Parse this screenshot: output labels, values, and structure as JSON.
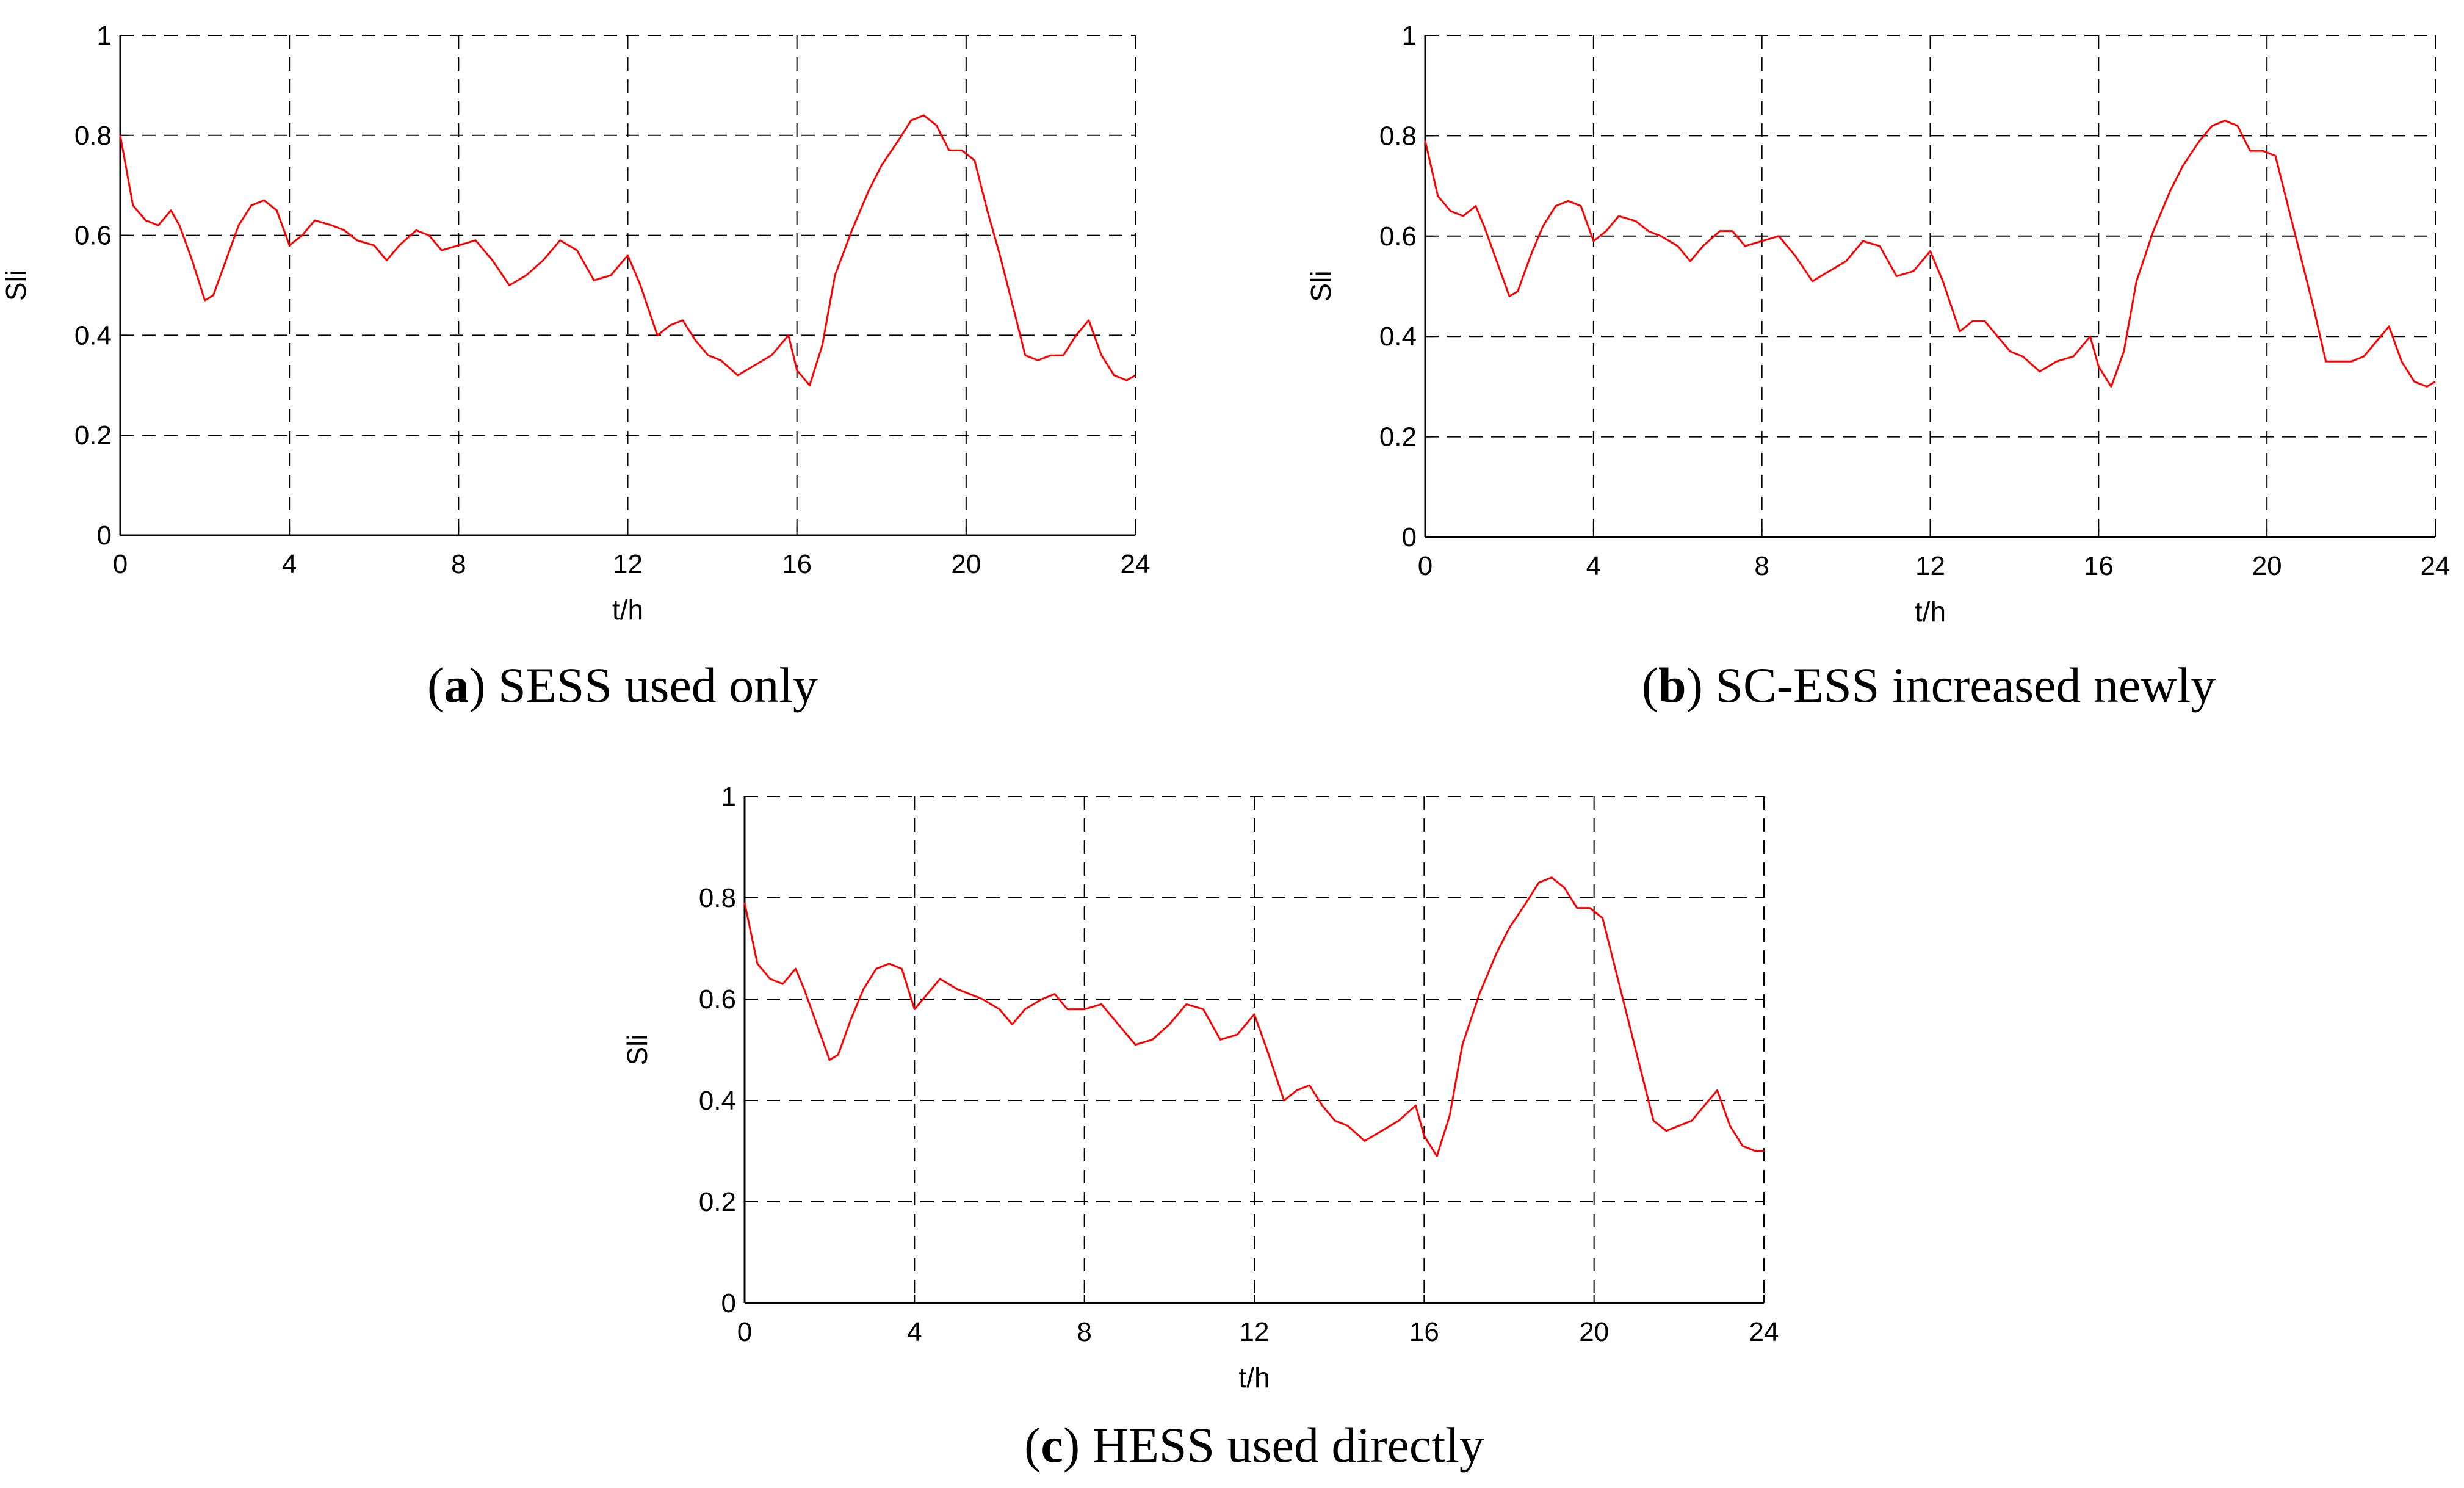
{
  "chart_data": [
    {
      "type": "line",
      "caption": {
        "open": "(",
        "letter": "a",
        "close": ")",
        "text": " SESS used only"
      },
      "xlabel": "t/h",
      "ylabel": "Sli",
      "xlim": [
        0,
        24
      ],
      "ylim": [
        0,
        1
      ],
      "xticks": [
        "0",
        "4",
        "8",
        "12",
        "16",
        "20",
        "24"
      ],
      "yticks": [
        "0",
        "0.2",
        "0.4",
        "0.6",
        "0.8",
        "1"
      ],
      "grid": true,
      "line_color": "#ff0000",
      "x": [
        0,
        0.3,
        0.6,
        0.9,
        1.2,
        1.4,
        1.7,
        2.0,
        2.2,
        2.5,
        2.8,
        3.1,
        3.4,
        3.7,
        4.0,
        4.3,
        4.6,
        5.0,
        5.3,
        5.6,
        6.0,
        6.3,
        6.6,
        7.0,
        7.3,
        7.6,
        8.0,
        8.4,
        8.8,
        9.2,
        9.6,
        10.0,
        10.4,
        10.8,
        11.2,
        11.6,
        12.0,
        12.3,
        12.7,
        13.0,
        13.3,
        13.6,
        13.9,
        14.2,
        14.6,
        15.0,
        15.4,
        15.8,
        16.0,
        16.3,
        16.6,
        16.9,
        17.3,
        17.7,
        18.0,
        18.4,
        18.7,
        19.0,
        19.3,
        19.6,
        19.9,
        20.2,
        20.5,
        20.8,
        21.1,
        21.4,
        21.7,
        22.0,
        22.3,
        22.6,
        22.9,
        23.2,
        23.5,
        23.8,
        24.0
      ],
      "y": [
        0.8,
        0.66,
        0.63,
        0.62,
        0.65,
        0.62,
        0.55,
        0.47,
        0.48,
        0.55,
        0.62,
        0.66,
        0.67,
        0.65,
        0.58,
        0.6,
        0.63,
        0.62,
        0.61,
        0.59,
        0.58,
        0.55,
        0.58,
        0.61,
        0.6,
        0.57,
        0.58,
        0.59,
        0.55,
        0.5,
        0.52,
        0.55,
        0.59,
        0.57,
        0.51,
        0.52,
        0.56,
        0.5,
        0.4,
        0.42,
        0.43,
        0.39,
        0.36,
        0.35,
        0.32,
        0.34,
        0.36,
        0.4,
        0.33,
        0.3,
        0.38,
        0.52,
        0.61,
        0.69,
        0.74,
        0.79,
        0.83,
        0.84,
        0.82,
        0.77,
        0.77,
        0.75,
        0.65,
        0.56,
        0.46,
        0.36,
        0.35,
        0.36,
        0.36,
        0.4,
        0.43,
        0.36,
        0.32,
        0.31,
        0.32
      ]
    },
    {
      "type": "line",
      "caption": {
        "open": "(",
        "letter": "b",
        "close": ")",
        "text": " SC-ESS increased newly"
      },
      "xlabel": "t/h",
      "ylabel": "Sli",
      "xlim": [
        0,
        24
      ],
      "ylim": [
        0,
        1
      ],
      "xticks": [
        "0",
        "4",
        "8",
        "12",
        "16",
        "20",
        "24"
      ],
      "yticks": [
        "0",
        "0.2",
        "0.4",
        "0.6",
        "0.8",
        "1"
      ],
      "grid": true,
      "line_color": "#ff0000",
      "x": [
        0,
        0.3,
        0.6,
        0.9,
        1.2,
        1.4,
        1.7,
        2.0,
        2.2,
        2.5,
        2.8,
        3.1,
        3.4,
        3.7,
        4.0,
        4.3,
        4.6,
        5.0,
        5.3,
        5.6,
        6.0,
        6.3,
        6.6,
        7.0,
        7.3,
        7.6,
        8.0,
        8.4,
        8.8,
        9.2,
        9.6,
        10.0,
        10.4,
        10.8,
        11.2,
        11.6,
        12.0,
        12.3,
        12.7,
        13.0,
        13.3,
        13.6,
        13.9,
        14.2,
        14.6,
        15.0,
        15.4,
        15.8,
        16.0,
        16.3,
        16.6,
        16.9,
        17.3,
        17.7,
        18.0,
        18.4,
        18.7,
        19.0,
        19.3,
        19.6,
        19.9,
        20.2,
        20.5,
        20.8,
        21.1,
        21.4,
        21.7,
        22.0,
        22.3,
        22.6,
        22.9,
        23.2,
        23.5,
        23.8,
        24.0
      ],
      "y": [
        0.79,
        0.68,
        0.65,
        0.64,
        0.66,
        0.62,
        0.55,
        0.48,
        0.49,
        0.56,
        0.62,
        0.66,
        0.67,
        0.66,
        0.59,
        0.61,
        0.64,
        0.63,
        0.61,
        0.6,
        0.58,
        0.55,
        0.58,
        0.61,
        0.61,
        0.58,
        0.59,
        0.6,
        0.56,
        0.51,
        0.53,
        0.55,
        0.59,
        0.58,
        0.52,
        0.53,
        0.57,
        0.51,
        0.41,
        0.43,
        0.43,
        0.4,
        0.37,
        0.36,
        0.33,
        0.35,
        0.36,
        0.4,
        0.34,
        0.3,
        0.37,
        0.51,
        0.61,
        0.69,
        0.74,
        0.79,
        0.82,
        0.83,
        0.82,
        0.77,
        0.77,
        0.76,
        0.66,
        0.56,
        0.46,
        0.35,
        0.35,
        0.35,
        0.36,
        0.39,
        0.42,
        0.35,
        0.31,
        0.3,
        0.31
      ]
    },
    {
      "type": "line",
      "caption": {
        "open": "(",
        "letter": "c",
        "close": ")",
        "text": " HESS used directly"
      },
      "xlabel": "t/h",
      "ylabel": "Sli",
      "xlim": [
        0,
        24
      ],
      "ylim": [
        0,
        1
      ],
      "xticks": [
        "0",
        "4",
        "8",
        "12",
        "16",
        "20",
        "24"
      ],
      "yticks": [
        "0",
        "0.2",
        "0.4",
        "0.6",
        "0.8",
        "1"
      ],
      "grid": true,
      "line_color": "#ff0000",
      "x": [
        0,
        0.3,
        0.6,
        0.9,
        1.2,
        1.4,
        1.7,
        2.0,
        2.2,
        2.5,
        2.8,
        3.1,
        3.4,
        3.7,
        4.0,
        4.3,
        4.6,
        5.0,
        5.3,
        5.6,
        6.0,
        6.3,
        6.6,
        7.0,
        7.3,
        7.6,
        8.0,
        8.4,
        8.8,
        9.2,
        9.6,
        10.0,
        10.4,
        10.8,
        11.2,
        11.6,
        12.0,
        12.3,
        12.7,
        13.0,
        13.3,
        13.6,
        13.9,
        14.2,
        14.6,
        15.0,
        15.4,
        15.8,
        16.0,
        16.3,
        16.6,
        16.9,
        17.3,
        17.7,
        18.0,
        18.4,
        18.7,
        19.0,
        19.3,
        19.6,
        19.9,
        20.2,
        20.5,
        20.8,
        21.1,
        21.4,
        21.7,
        22.0,
        22.3,
        22.6,
        22.9,
        23.2,
        23.5,
        23.8,
        24.0
      ],
      "y": [
        0.79,
        0.67,
        0.64,
        0.63,
        0.66,
        0.62,
        0.55,
        0.48,
        0.49,
        0.56,
        0.62,
        0.66,
        0.67,
        0.66,
        0.58,
        0.61,
        0.64,
        0.62,
        0.61,
        0.6,
        0.58,
        0.55,
        0.58,
        0.6,
        0.61,
        0.58,
        0.58,
        0.59,
        0.55,
        0.51,
        0.52,
        0.55,
        0.59,
        0.58,
        0.52,
        0.53,
        0.57,
        0.5,
        0.4,
        0.42,
        0.43,
        0.39,
        0.36,
        0.35,
        0.32,
        0.34,
        0.36,
        0.39,
        0.33,
        0.29,
        0.37,
        0.51,
        0.61,
        0.69,
        0.74,
        0.79,
        0.83,
        0.84,
        0.82,
        0.78,
        0.78,
        0.76,
        0.66,
        0.56,
        0.46,
        0.36,
        0.34,
        0.35,
        0.36,
        0.39,
        0.42,
        0.35,
        0.31,
        0.3,
        0.3
      ]
    }
  ]
}
